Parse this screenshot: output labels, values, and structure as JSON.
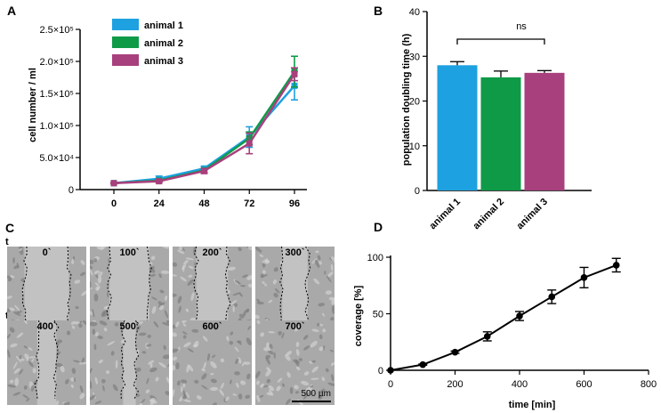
{
  "chart_data": [
    {
      "panel": "A",
      "type": "line",
      "title": "",
      "xlabel": "",
      "ylabel": "cell number / ml",
      "x": [
        0,
        24,
        48,
        72,
        96
      ],
      "x_tick_labels": [
        "0",
        "24",
        "48",
        "72",
        "96"
      ],
      "ylim": [
        0,
        250000
      ],
      "y_tick_values": [
        0,
        50000,
        100000,
        150000,
        200000,
        250000
      ],
      "y_tick_labels": [
        "0",
        "5.0×10⁴",
        "1.0×10⁵",
        "1.5×10⁵",
        "2.0×10⁵",
        "2.5×10⁵"
      ],
      "series": [
        {
          "name": "animal 1",
          "color": "#1ea1e0",
          "values": [
            10000,
            17000,
            33000,
            82000,
            162000
          ],
          "errors": [
            1000,
            4000,
            3000,
            16000,
            22000
          ]
        },
        {
          "name": "animal 2",
          "color": "#0f9a48",
          "values": [
            10000,
            14000,
            30000,
            80000,
            184000
          ],
          "errors": [
            1000,
            2000,
            3000,
            10000,
            24000
          ]
        },
        {
          "name": "animal 3",
          "color": "#a8407e",
          "values": [
            10000,
            13000,
            29000,
            72000,
            180000
          ],
          "errors": [
            1000,
            2000,
            4000,
            16000,
            10000
          ]
        }
      ],
      "legend_position": "top-left"
    },
    {
      "panel": "B",
      "type": "bar",
      "xlabel": "",
      "ylabel": "population doubling time (h)",
      "categories": [
        "animal 1",
        "animal 2",
        "animal 3"
      ],
      "values": [
        28,
        25.3,
        26.3
      ],
      "errors": [
        0.8,
        1.4,
        0.5
      ],
      "colors": [
        "#1ea1e0",
        "#0f9a48",
        "#a8407e"
      ],
      "ylim": [
        0,
        40
      ],
      "y_tick_values": [
        0,
        10,
        20,
        30,
        40
      ],
      "y_tick_labels": [
        "0",
        "10",
        "20",
        "30",
        "40"
      ],
      "annotation": "ns"
    },
    {
      "panel": "D",
      "type": "line",
      "xlabel": "time [min]",
      "ylabel": "coverage [%]",
      "x": [
        0,
        100,
        200,
        300,
        400,
        500,
        600,
        700
      ],
      "values": [
        0,
        5,
        16,
        30,
        48,
        65,
        82,
        93
      ],
      "errors": [
        0,
        0.5,
        1,
        4,
        4,
        6,
        9,
        6
      ],
      "xlim": [
        0,
        800
      ],
      "x_tick_values": [
        0,
        200,
        400,
        600,
        800
      ],
      "x_tick_labels": [
        "0",
        "200",
        "400",
        "600",
        "800"
      ],
      "ylim": [
        0,
        100
      ],
      "y_tick_values": [
        0,
        50,
        100
      ],
      "y_tick_labels": [
        "0",
        "50",
        "100"
      ]
    }
  ],
  "panel_labels": {
    "a": "A",
    "b": "B",
    "c": "C",
    "d": "D"
  },
  "panel_c": {
    "row_label": "t",
    "frames": [
      "0`",
      "100`",
      "200`",
      "300`",
      "400`",
      "500`",
      "600`",
      "700`"
    ],
    "scale_bar": "500 µm"
  }
}
